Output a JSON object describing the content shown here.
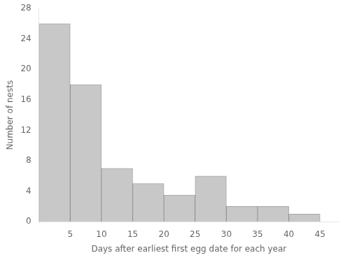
{
  "chart_data": {
    "type": "histogram",
    "xlabel": "Days after earliest first egg date for each year",
    "ylabel": "Number of nests",
    "bins": [
      0,
      5,
      10,
      15,
      20,
      25,
      30,
      35,
      40,
      45
    ],
    "values": [
      26,
      18,
      7,
      5,
      3.5,
      6,
      2,
      2,
      1
    ],
    "color": "#c8c8c8",
    "xlim": [
      0,
      48
    ],
    "xticks": [
      5,
      10,
      15,
      20,
      25,
      30,
      35,
      40,
      45
    ],
    "ylim": [
      0,
      28
    ],
    "yticks": [
      0,
      4,
      8,
      12,
      16,
      20,
      24,
      28
    ],
    "grid": false
  }
}
